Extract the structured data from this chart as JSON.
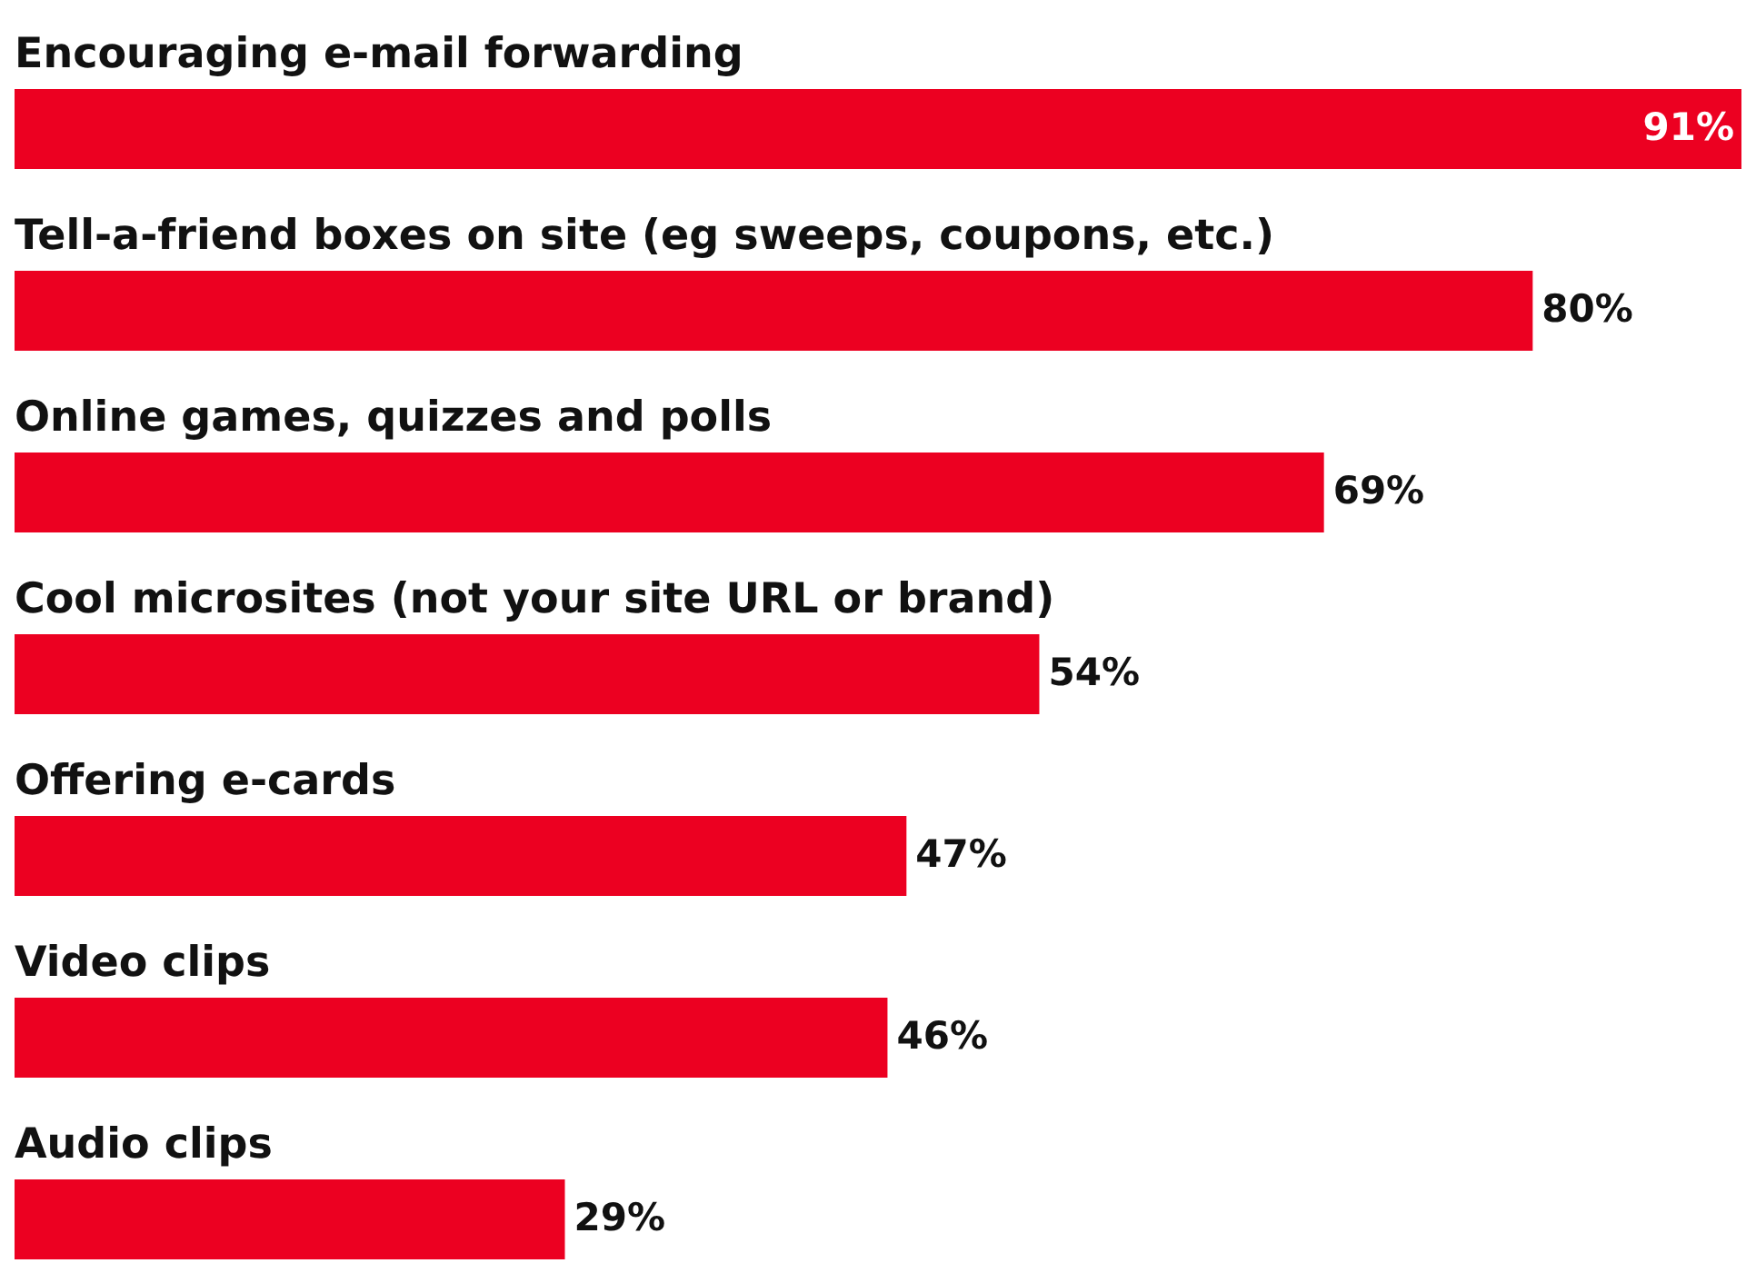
{
  "chart_data": {
    "type": "bar",
    "orientation": "horizontal",
    "categories": [
      "Encouraging e-mail forwarding",
      "Tell-a-friend boxes on site (eg sweeps, coupons, etc.)",
      "Online games, quizzes and polls",
      "Cool microsites (not your site URL or brand)",
      "Offering e-cards",
      "Video clips",
      "Audio clips"
    ],
    "values": [
      91,
      80,
      69,
      54,
      47,
      46,
      29
    ],
    "value_labels": [
      "91%",
      "80%",
      "69%",
      "54%",
      "47%",
      "46%",
      "29%"
    ],
    "color": "#ec0021"
  }
}
